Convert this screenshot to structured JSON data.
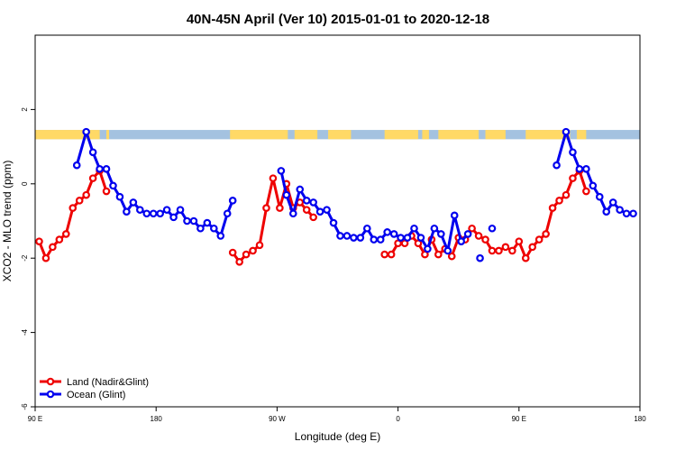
{
  "chart_data": {
    "type": "line",
    "title": "40N-45N April (Ver 10)   2015-01-01 to 2020-12-18",
    "xlabel": "Longitude (deg E)",
    "ylabel": "XCO2 - MLO trend (ppm)",
    "xlim": [
      90,
      540
    ],
    "ylim": [
      -6,
      4
    ],
    "x_ticks": [
      {
        "value": 90,
        "label": "90 E"
      },
      {
        "value": 180,
        "label": "180"
      },
      {
        "value": 270,
        "label": "90 W"
      },
      {
        "value": 360,
        "label": "0"
      },
      {
        "value": 450,
        "label": "90 E"
      },
      {
        "value": 540,
        "label": "180"
      }
    ],
    "y_ticks": [
      {
        "value": -6,
        "label": "-6"
      },
      {
        "value": -4,
        "label": "-4"
      },
      {
        "value": -2,
        "label": "-2"
      },
      {
        "value": 0,
        "label": "0"
      },
      {
        "value": 2,
        "label": "2"
      }
    ],
    "grid": false,
    "legend_position": "bottom-left",
    "colors": {
      "land": "#ee0000",
      "ocean": "#0000ee",
      "band_land": "#ffd966",
      "band_ocean": "#a4c2e0"
    },
    "land_ocean_band": {
      "y_range": [
        1.2,
        1.45
      ],
      "land_segments": [
        [
          90,
          138
        ],
        [
          143,
          145
        ],
        [
          235,
          278
        ],
        [
          283,
          300
        ],
        [
          308,
          325
        ],
        [
          350,
          375
        ],
        [
          378,
          383
        ],
        [
          390,
          420
        ],
        [
          425,
          440
        ],
        [
          455,
          488
        ],
        [
          493,
          500
        ]
      ]
    },
    "series": [
      {
        "name": "Land (Nadir&Glint)",
        "color": "#ee0000",
        "segments": [
          [
            [
              93,
              -1.55
            ],
            [
              98,
              -2.0
            ],
            [
              103,
              -1.7
            ],
            [
              108,
              -1.5
            ],
            [
              113,
              -1.35
            ],
            [
              118,
              -0.65
            ],
            [
              123,
              -0.45
            ],
            [
              128,
              -0.3
            ],
            [
              133,
              0.15
            ],
            [
              138,
              0.35
            ],
            [
              143,
              -0.2
            ]
          ],
          [
            [
              237,
              -1.85
            ],
            [
              242,
              -2.1
            ],
            [
              247,
              -1.9
            ],
            [
              252,
              -1.8
            ],
            [
              257,
              -1.65
            ],
            [
              262,
              -0.65
            ],
            [
              267,
              0.15
            ],
            [
              272,
              -0.65
            ],
            [
              277,
              0.0
            ],
            [
              282,
              -0.65
            ],
            [
              287,
              -0.5
            ],
            [
              292,
              -0.7
            ],
            [
              297,
              -0.9
            ]
          ],
          [
            [
              350,
              -1.9
            ],
            [
              355,
              -1.9
            ],
            [
              360,
              -1.6
            ],
            [
              365,
              -1.6
            ],
            [
              370,
              -1.4
            ],
            [
              375,
              -1.6
            ],
            [
              380,
              -1.9
            ],
            [
              385,
              -1.5
            ],
            [
              390,
              -1.9
            ],
            [
              395,
              -1.75
            ],
            [
              400,
              -1.95
            ],
            [
              405,
              -1.45
            ],
            [
              410,
              -1.5
            ],
            [
              415,
              -1.2
            ],
            [
              420,
              -1.4
            ],
            [
              425,
              -1.5
            ],
            [
              430,
              -1.8
            ],
            [
              435,
              -1.8
            ],
            [
              440,
              -1.7
            ],
            [
              445,
              -1.8
            ],
            [
              450,
              -1.55
            ],
            [
              455,
              -2.0
            ],
            [
              460,
              -1.7
            ],
            [
              465,
              -1.5
            ],
            [
              470,
              -1.35
            ],
            [
              475,
              -0.65
            ],
            [
              480,
              -0.45
            ],
            [
              485,
              -0.3
            ],
            [
              490,
              0.15
            ],
            [
              495,
              0.35
            ],
            [
              500,
              -0.2
            ]
          ]
        ]
      },
      {
        "name": "Ocean (Glint)",
        "color": "#0000ee",
        "segments": [
          [
            [
              121,
              0.5
            ],
            [
              128,
              1.4
            ],
            [
              133,
              0.85
            ],
            [
              138,
              0.4
            ],
            [
              143,
              0.4
            ],
            [
              148,
              -0.05
            ],
            [
              153,
              -0.35
            ],
            [
              158,
              -0.75
            ],
            [
              163,
              -0.5
            ],
            [
              168,
              -0.7
            ],
            [
              173,
              -0.8
            ],
            [
              178,
              -0.8
            ],
            [
              183,
              -0.8
            ],
            [
              188,
              -0.7
            ],
            [
              193,
              -0.9
            ],
            [
              198,
              -0.7
            ],
            [
              203,
              -1.0
            ],
            [
              208,
              -1.0
            ],
            [
              213,
              -1.2
            ],
            [
              218,
              -1.05
            ],
            [
              223,
              -1.2
            ],
            [
              228,
              -1.4
            ],
            [
              233,
              -0.8
            ],
            [
              237,
              -0.45
            ]
          ],
          [
            [
              273,
              0.35
            ],
            [
              277,
              -0.3
            ],
            [
              282,
              -0.8
            ],
            [
              287,
              -0.15
            ],
            [
              292,
              -0.45
            ],
            [
              297,
              -0.5
            ],
            [
              302,
              -0.75
            ],
            [
              307,
              -0.7
            ],
            [
              312,
              -1.05
            ],
            [
              317,
              -1.4
            ],
            [
              322,
              -1.4
            ],
            [
              327,
              -1.45
            ],
            [
              332,
              -1.45
            ],
            [
              337,
              -1.2
            ],
            [
              342,
              -1.5
            ],
            [
              347,
              -1.5
            ],
            [
              352,
              -1.3
            ],
            [
              357,
              -1.35
            ],
            [
              362,
              -1.45
            ],
            [
              367,
              -1.45
            ],
            [
              372,
              -1.2
            ],
            [
              377,
              -1.45
            ],
            [
              382,
              -1.75
            ],
            [
              387,
              -1.2
            ],
            [
              392,
              -1.35
            ],
            [
              397,
              -1.8
            ],
            [
              402,
              -0.85
            ],
            [
              407,
              -1.55
            ],
            [
              412,
              -1.35
            ]
          ],
          [
            [
              421,
              -2.0
            ]
          ],
          [
            [
              430,
              -1.2
            ]
          ],
          [
            [
              478,
              0.5
            ],
            [
              485,
              1.4
            ],
            [
              490,
              0.85
            ],
            [
              495,
              0.4
            ],
            [
              500,
              0.4
            ],
            [
              505,
              -0.05
            ],
            [
              510,
              -0.35
            ],
            [
              515,
              -0.75
            ],
            [
              520,
              -0.5
            ],
            [
              525,
              -0.7
            ],
            [
              530,
              -0.8
            ],
            [
              535,
              -0.8
            ]
          ]
        ]
      }
    ]
  }
}
